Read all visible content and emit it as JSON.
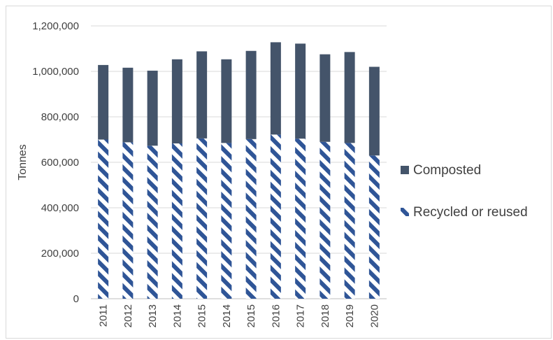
{
  "chart_data": {
    "type": "bar",
    "stacked": true,
    "title": "",
    "xlabel": "",
    "ylabel": "Tonnes",
    "ylim": [
      0,
      1200000
    ],
    "yticks": [
      "0",
      "200,000",
      "400,000",
      "600,000",
      "800,000",
      "1,000,000",
      "1,200,000"
    ],
    "grid": true,
    "legend_position": "right",
    "categories": [
      "2011",
      "2012",
      "2013",
      "2014",
      "2015",
      "2014",
      "2015",
      "2016",
      "2017",
      "2018",
      "2019",
      "2020"
    ],
    "series": [
      {
        "name": "Recycled or reused",
        "pattern": "diagonal-stripes",
        "color": "#2f5597",
        "values": [
          700000,
          688000,
          673000,
          683000,
          705000,
          685000,
          702000,
          722000,
          704000,
          690000,
          685000,
          630000
        ]
      },
      {
        "name": "Composted",
        "color": "#44546a",
        "values": [
          328000,
          328000,
          330000,
          370000,
          383000,
          368000,
          388000,
          406000,
          418000,
          385000,
          400000,
          390000
        ]
      }
    ],
    "legend_order": [
      "Composted",
      "Recycled or reused"
    ]
  }
}
